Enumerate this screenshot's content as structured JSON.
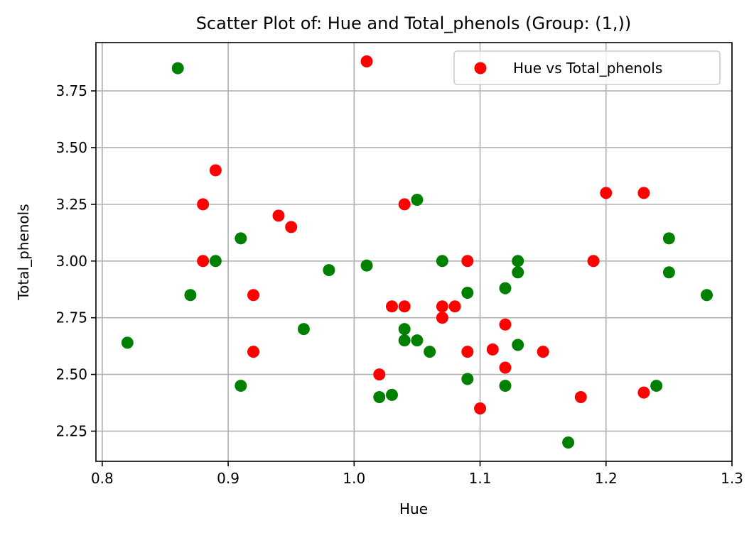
{
  "chart_data": {
    "type": "scatter",
    "title": "Scatter Plot of: Hue and Total_phenols (Group: (1,))",
    "xlabel": "Hue",
    "ylabel": "Total_phenols",
    "xlim": [
      0.795,
      1.3
    ],
    "ylim": [
      2.117,
      3.963
    ],
    "x_ticks": [
      0.8,
      0.9,
      1.0,
      1.1,
      1.2,
      1.3
    ],
    "x_tick_labels": [
      "0.8",
      "0.9",
      "1.0",
      "1.1",
      "1.2",
      "1.3"
    ],
    "y_ticks": [
      2.25,
      2.5,
      2.75,
      3.0,
      3.25,
      3.5,
      3.75
    ],
    "y_tick_labels": [
      "2.25",
      "2.50",
      "2.75",
      "3.00",
      "3.25",
      "3.50",
      "3.75"
    ],
    "grid": true,
    "legend_position": "top-right",
    "legend_label": "Hue vs Total_phenols",
    "series": [
      {
        "color": "#008000",
        "points": [
          [
            0.82,
            2.64
          ],
          [
            0.86,
            3.85
          ],
          [
            0.87,
            2.85
          ],
          [
            0.89,
            3.0
          ],
          [
            0.91,
            3.1
          ],
          [
            0.91,
            2.45
          ],
          [
            0.96,
            2.7
          ],
          [
            0.98,
            2.96
          ],
          [
            1.01,
            2.98
          ],
          [
            1.02,
            2.4
          ],
          [
            1.03,
            2.41
          ],
          [
            1.04,
            2.7
          ],
          [
            1.04,
            2.65
          ],
          [
            1.05,
            3.27
          ],
          [
            1.05,
            2.65
          ],
          [
            1.06,
            2.6
          ],
          [
            1.07,
            3.0
          ],
          [
            1.09,
            2.86
          ],
          [
            1.09,
            2.48
          ],
          [
            1.12,
            2.88
          ],
          [
            1.12,
            2.45
          ],
          [
            1.13,
            3.0
          ],
          [
            1.13,
            2.95
          ],
          [
            1.13,
            2.63
          ],
          [
            1.17,
            2.2
          ],
          [
            1.24,
            2.45
          ],
          [
            1.25,
            3.1
          ],
          [
            1.25,
            2.95
          ],
          [
            1.28,
            2.85
          ]
        ]
      },
      {
        "color": "#ff0000",
        "points": [
          [
            0.88,
            3.25
          ],
          [
            0.88,
            3.0
          ],
          [
            0.89,
            3.4
          ],
          [
            0.92,
            2.85
          ],
          [
            0.92,
            2.6
          ],
          [
            0.94,
            3.2
          ],
          [
            0.95,
            3.15
          ],
          [
            1.01,
            3.88
          ],
          [
            1.02,
            2.5
          ],
          [
            1.03,
            2.8
          ],
          [
            1.04,
            3.25
          ],
          [
            1.04,
            2.8
          ],
          [
            1.07,
            2.8
          ],
          [
            1.07,
            2.75
          ],
          [
            1.08,
            2.8
          ],
          [
            1.09,
            3.0
          ],
          [
            1.09,
            2.6
          ],
          [
            1.1,
            2.35
          ],
          [
            1.11,
            2.61
          ],
          [
            1.12,
            2.72
          ],
          [
            1.12,
            2.53
          ],
          [
            1.15,
            2.6
          ],
          [
            1.18,
            2.4
          ],
          [
            1.19,
            3.0
          ],
          [
            1.2,
            3.3
          ],
          [
            1.23,
            3.3
          ],
          [
            1.23,
            2.42
          ]
        ]
      }
    ]
  }
}
